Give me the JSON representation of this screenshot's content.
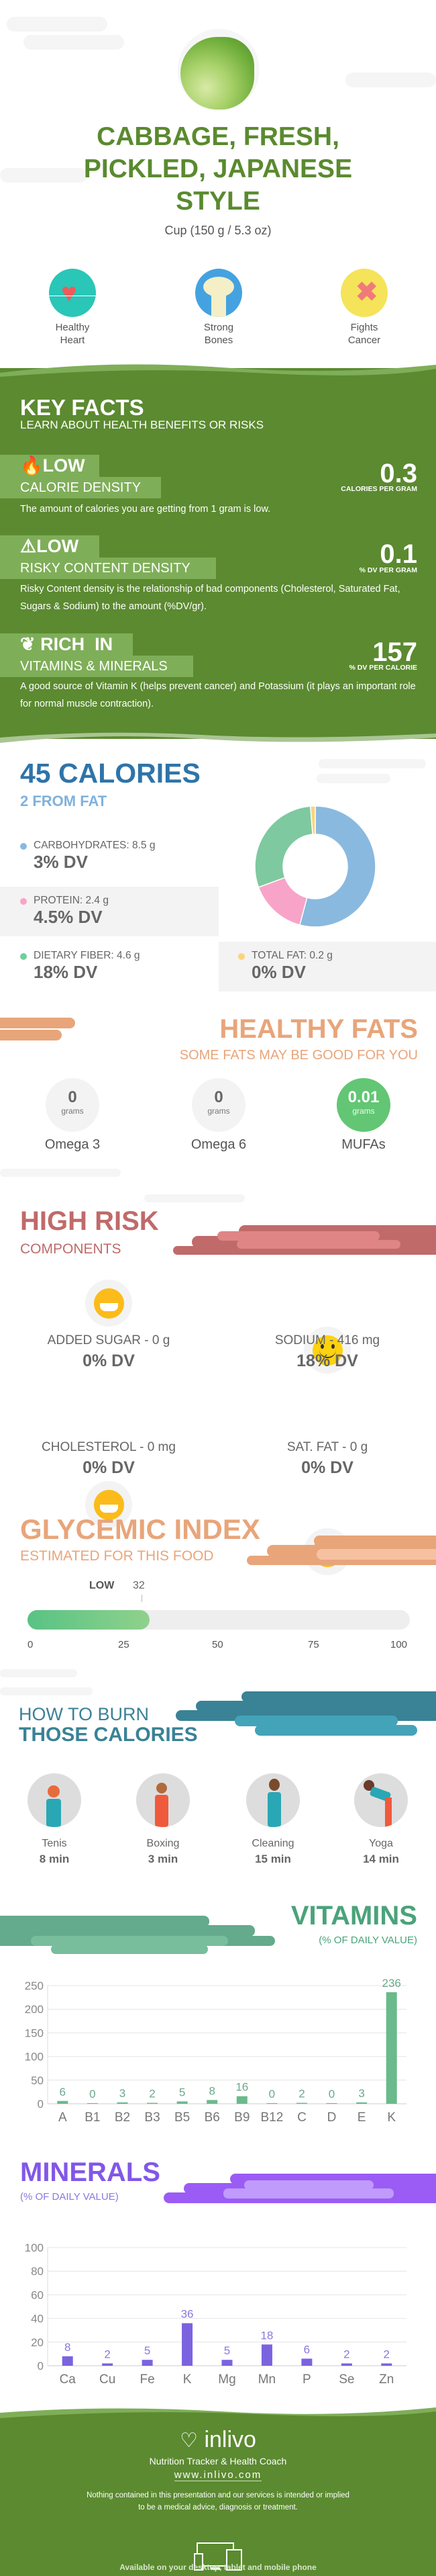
{
  "header": {
    "title_lines": [
      "CABBAGE, FRESH,",
      "PICKLED, JAPANESE",
      "STYLE"
    ],
    "serving": "Cup (150 g / 5.3 oz)"
  },
  "benefits": [
    {
      "label1": "Healthy",
      "label2": "Heart",
      "icon": "heart-icon"
    },
    {
      "label1": "Strong",
      "label2": "Bones",
      "icon": "bone-icon"
    },
    {
      "label1": "Fights",
      "label2": "Cancer",
      "icon": "ribbon-icon"
    }
  ],
  "key_facts": {
    "title": "KEY FACTS",
    "subtitle": "LEARN ABOUT HEALTH BENEFITS OR RISKS",
    "items": [
      {
        "level": "LOW",
        "name": "CALORIE DENSITY",
        "value": "0.3",
        "unit": "CALORIES PER GRAM",
        "desc": "The amount of calories you are getting from 1 gram is low.",
        "icon": "flame-icon"
      },
      {
        "level": "LOW",
        "name": "RISKY CONTENT DENSITY",
        "value": "0.1",
        "unit": "% DV PER GRAM",
        "desc": "Risky Content density is the relationship of bad components (Cholesterol, Saturated Fat, Sugars & Sodium) to the amount (%DV/gr).",
        "icon": "warning-icon"
      },
      {
        "level": "RICH  IN",
        "name": "VITAMINS & MINERALS",
        "value": "157",
        "unit": "% DV PER CALORIE",
        "desc": "A good source of Vitamin K (helps prevent cancer) and Potassium (it plays an important role for normal muscle contraction).",
        "icon": "leaf-icon"
      }
    ]
  },
  "calories": {
    "title": "45 CALORIES",
    "from_fat": "2 FROM FAT",
    "macros": [
      {
        "label": "CARBOHYDRATES: 8.5 g",
        "dv": "3% DV",
        "color": "#8ab9df"
      },
      {
        "label": "PROTEIN: 2.4 g",
        "dv": "4.5% DV",
        "color": "#f7a4c8"
      },
      {
        "label": "DIETARY FIBER: 4.6 g",
        "dv": "18% DV",
        "color": "#7ec9a0"
      },
      {
        "label": "TOTAL FAT: 0.2 g",
        "dv": "0% DV",
        "color": "#fad47a"
      }
    ]
  },
  "healthy_fats": {
    "title": "HEALTHY FATS",
    "subtitle": "SOME FATS MAY BE GOOD FOR YOU",
    "items": [
      {
        "value": "0",
        "unit": "grams",
        "name": "Omega 3"
      },
      {
        "value": "0",
        "unit": "grams",
        "name": "Omega 6"
      },
      {
        "value": "0.01",
        "unit": "grams",
        "name": "MUFAs"
      }
    ]
  },
  "high_risk": {
    "title": "HIGH RISK",
    "subtitle": "COMPONENTS",
    "items": [
      {
        "label": "ADDED SUGAR - 0 g",
        "dv": "0% DV",
        "icon": "grin-face-icon"
      },
      {
        "label": "SODIUM - 416 mg",
        "dv": "18% DV",
        "icon": "smile-face-icon"
      },
      {
        "label": "CHOLESTEROL - 0 mg",
        "dv": "0% DV",
        "icon": "grin-face-icon"
      },
      {
        "label": "SAT. FAT - 0 g",
        "dv": "0% DV",
        "icon": "grin-face-icon"
      }
    ]
  },
  "glycemic": {
    "title": "GLYCEMIC INDEX",
    "subtitle": "ESTIMATED FOR THIS FOOD",
    "level": "LOW",
    "value": 32,
    "value_label": "32",
    "ticks": [
      "0",
      "25",
      "50",
      "75",
      "100"
    ]
  },
  "burn": {
    "title1": "HOW TO BURN",
    "title2": "THOSE CALORIES",
    "items": [
      {
        "name": "Tenis",
        "time": "8 min"
      },
      {
        "name": "Boxing",
        "time": "3 min"
      },
      {
        "name": "Cleaning",
        "time": "15 min"
      },
      {
        "name": "Yoga",
        "time": "14 min"
      }
    ]
  },
  "chart_data": [
    {
      "type": "bar",
      "title": "VITAMINS",
      "subtitle": "(% OF DAILY VALUE)",
      "categories": [
        "A",
        "B1",
        "B2",
        "B3",
        "B5",
        "B6",
        "B9",
        "B12",
        "C",
        "D",
        "E",
        "K"
      ],
      "values": [
        6,
        0,
        3,
        2,
        5,
        8,
        16,
        0,
        2,
        0,
        3,
        236
      ],
      "ylim": [
        0,
        250
      ],
      "yticks": [
        "0",
        "50",
        "100",
        "150",
        "200",
        "250"
      ],
      "color": "#6aba8b",
      "label_color": "#6aa98a",
      "grid": true
    },
    {
      "type": "bar",
      "title": "MINERALS",
      "subtitle": "(% OF DAILY VALUE)",
      "categories": [
        "Ca",
        "Cu",
        "Fe",
        "K",
        "Mg",
        "Mn",
        "P",
        "Se",
        "Zn"
      ],
      "values": [
        8,
        2,
        5,
        36,
        5,
        18,
        6,
        2,
        2
      ],
      "ylim": [
        0,
        100
      ],
      "yticks": [
        "0",
        "20",
        "40",
        "60",
        "80",
        "100"
      ],
      "color": "#7b63e0",
      "label_color": "#8a78e0",
      "grid": true
    }
  ],
  "footer": {
    "brand": "inlivo",
    "tagline": "Nutrition Tracker & Health Coach",
    "url": "www.inlivo.com",
    "disclaimer1": "Nothing contained in this presentation and our services is intended or implied",
    "disclaimer2": "to be a medical advice, diagnosis or treatment.",
    "available": "Available on your desktop, tablet and mobile phone"
  }
}
